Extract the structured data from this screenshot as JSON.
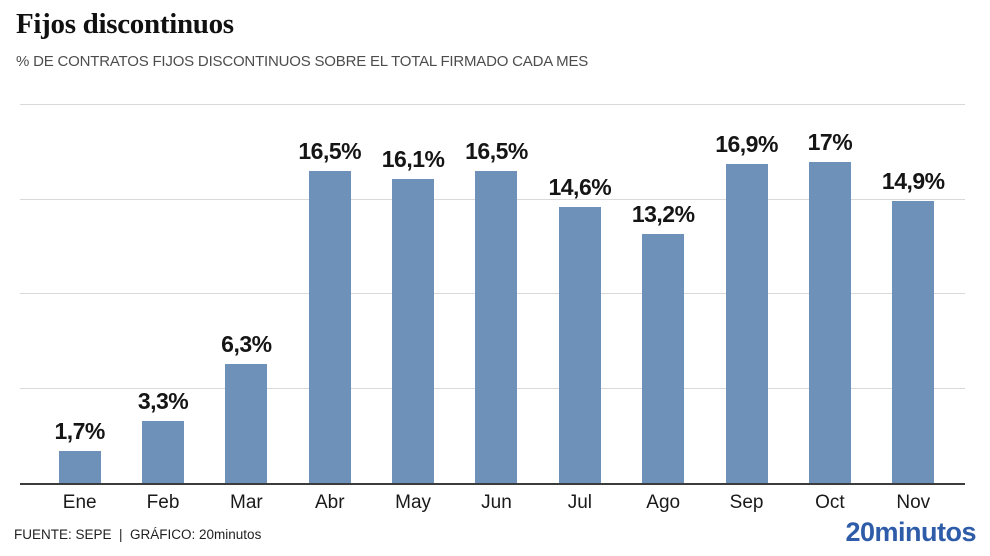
{
  "header": {
    "title": "Fijos discontinuos",
    "subtitle": "% DE CONTRATOS FIJOS DISCONTINUOS SOBRE EL TOTAL FIRMADO CADA MES"
  },
  "footer": {
    "source": "FUENTE: SEPE  |  GRÁFICO: 20minutos",
    "logo": "20minutos"
  },
  "colors": {
    "bar": "#6e91ba",
    "logo_blue": "#2e5ca8",
    "gridline": "#d9d9d9",
    "axis": "#3c3c3c",
    "title_text": "#111111",
    "subtitle_text": "#4d4d4d"
  },
  "chart_data": {
    "type": "bar",
    "title": "Fijos discontinuos",
    "subtitle": "% DE CONTRATOS FIJOS DISCONTINUOS SOBRE EL TOTAL FIRMADO CADA MES",
    "categories": [
      "Ene",
      "Feb",
      "Mar",
      "Abr",
      "May",
      "Jun",
      "Jul",
      "Ago",
      "Sep",
      "Oct",
      "Nov"
    ],
    "values": [
      1.7,
      3.3,
      6.3,
      16.5,
      16.1,
      16.5,
      14.6,
      13.2,
      16.9,
      17,
      14.9
    ],
    "value_labels": [
      "1,7%",
      "3,3%",
      "6,3%",
      "16,5%",
      "16,1%",
      "16,5%",
      "14,6%",
      "13,2%",
      "16,9%",
      "17%",
      "14,9%"
    ],
    "xlabel": "",
    "ylabel": "",
    "ylim": [
      0,
      20
    ],
    "gridline_step": 5,
    "grid": true,
    "legend": false,
    "bar_color": "#6e91ba",
    "data_labels_position": "above-bars",
    "y_axis_labels_visible": false
  }
}
